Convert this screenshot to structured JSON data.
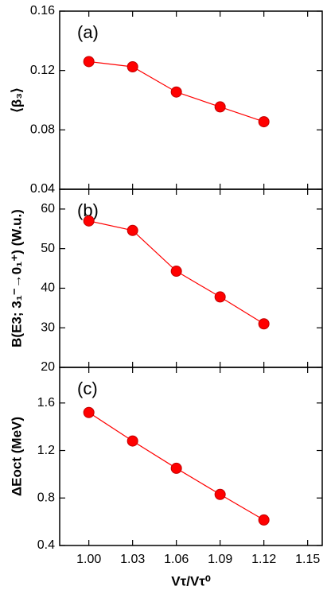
{
  "chart_data": [
    {
      "type": "line",
      "annotation": "(a)",
      "y_label": "⟨β₃⟩",
      "x": [
        1.0,
        1.03,
        1.06,
        1.09,
        1.12
      ],
      "series": [
        {
          "name": "β3",
          "color": "#ff0000",
          "values": [
            0.126,
            0.1225,
            0.1055,
            0.0955,
            0.0855
          ]
        }
      ],
      "ylim": [
        0.04,
        0.16
      ],
      "yticks": [
        0.04,
        0.08,
        0.12,
        0.16
      ]
    },
    {
      "type": "line",
      "annotation": "(b)",
      "y_label": "B(E3; 3₁⁻→0₁⁺) (W.u.)",
      "x": [
        1.0,
        1.03,
        1.06,
        1.09,
        1.12
      ],
      "series": [
        {
          "name": "B(E3)",
          "color": "#ff0000",
          "values": [
            57,
            54.6,
            44.3,
            37.8,
            31
          ]
        }
      ],
      "ylim": [
        20,
        65
      ],
      "yticks": [
        20,
        30,
        40,
        50,
        60
      ]
    },
    {
      "type": "line",
      "annotation": "(c)",
      "y_label": "ΔEoct (MeV)",
      "x_label": "Vτ/Vτ⁰",
      "x": [
        1.0,
        1.03,
        1.06,
        1.09,
        1.12
      ],
      "series": [
        {
          "name": "ΔEoct",
          "color": "#ff0000",
          "values": [
            1.52,
            1.28,
            1.05,
            0.83,
            0.615
          ]
        }
      ],
      "ylim": [
        0.4,
        1.9
      ],
      "yticks": [
        0.4,
        0.8,
        1.2,
        1.6
      ],
      "xlim": [
        0.98,
        1.16
      ],
      "xticks": [
        {
          "value": 1.0,
          "label": "1.00"
        },
        1.03,
        1.06,
        1.09,
        1.12,
        1.15
      ]
    }
  ]
}
